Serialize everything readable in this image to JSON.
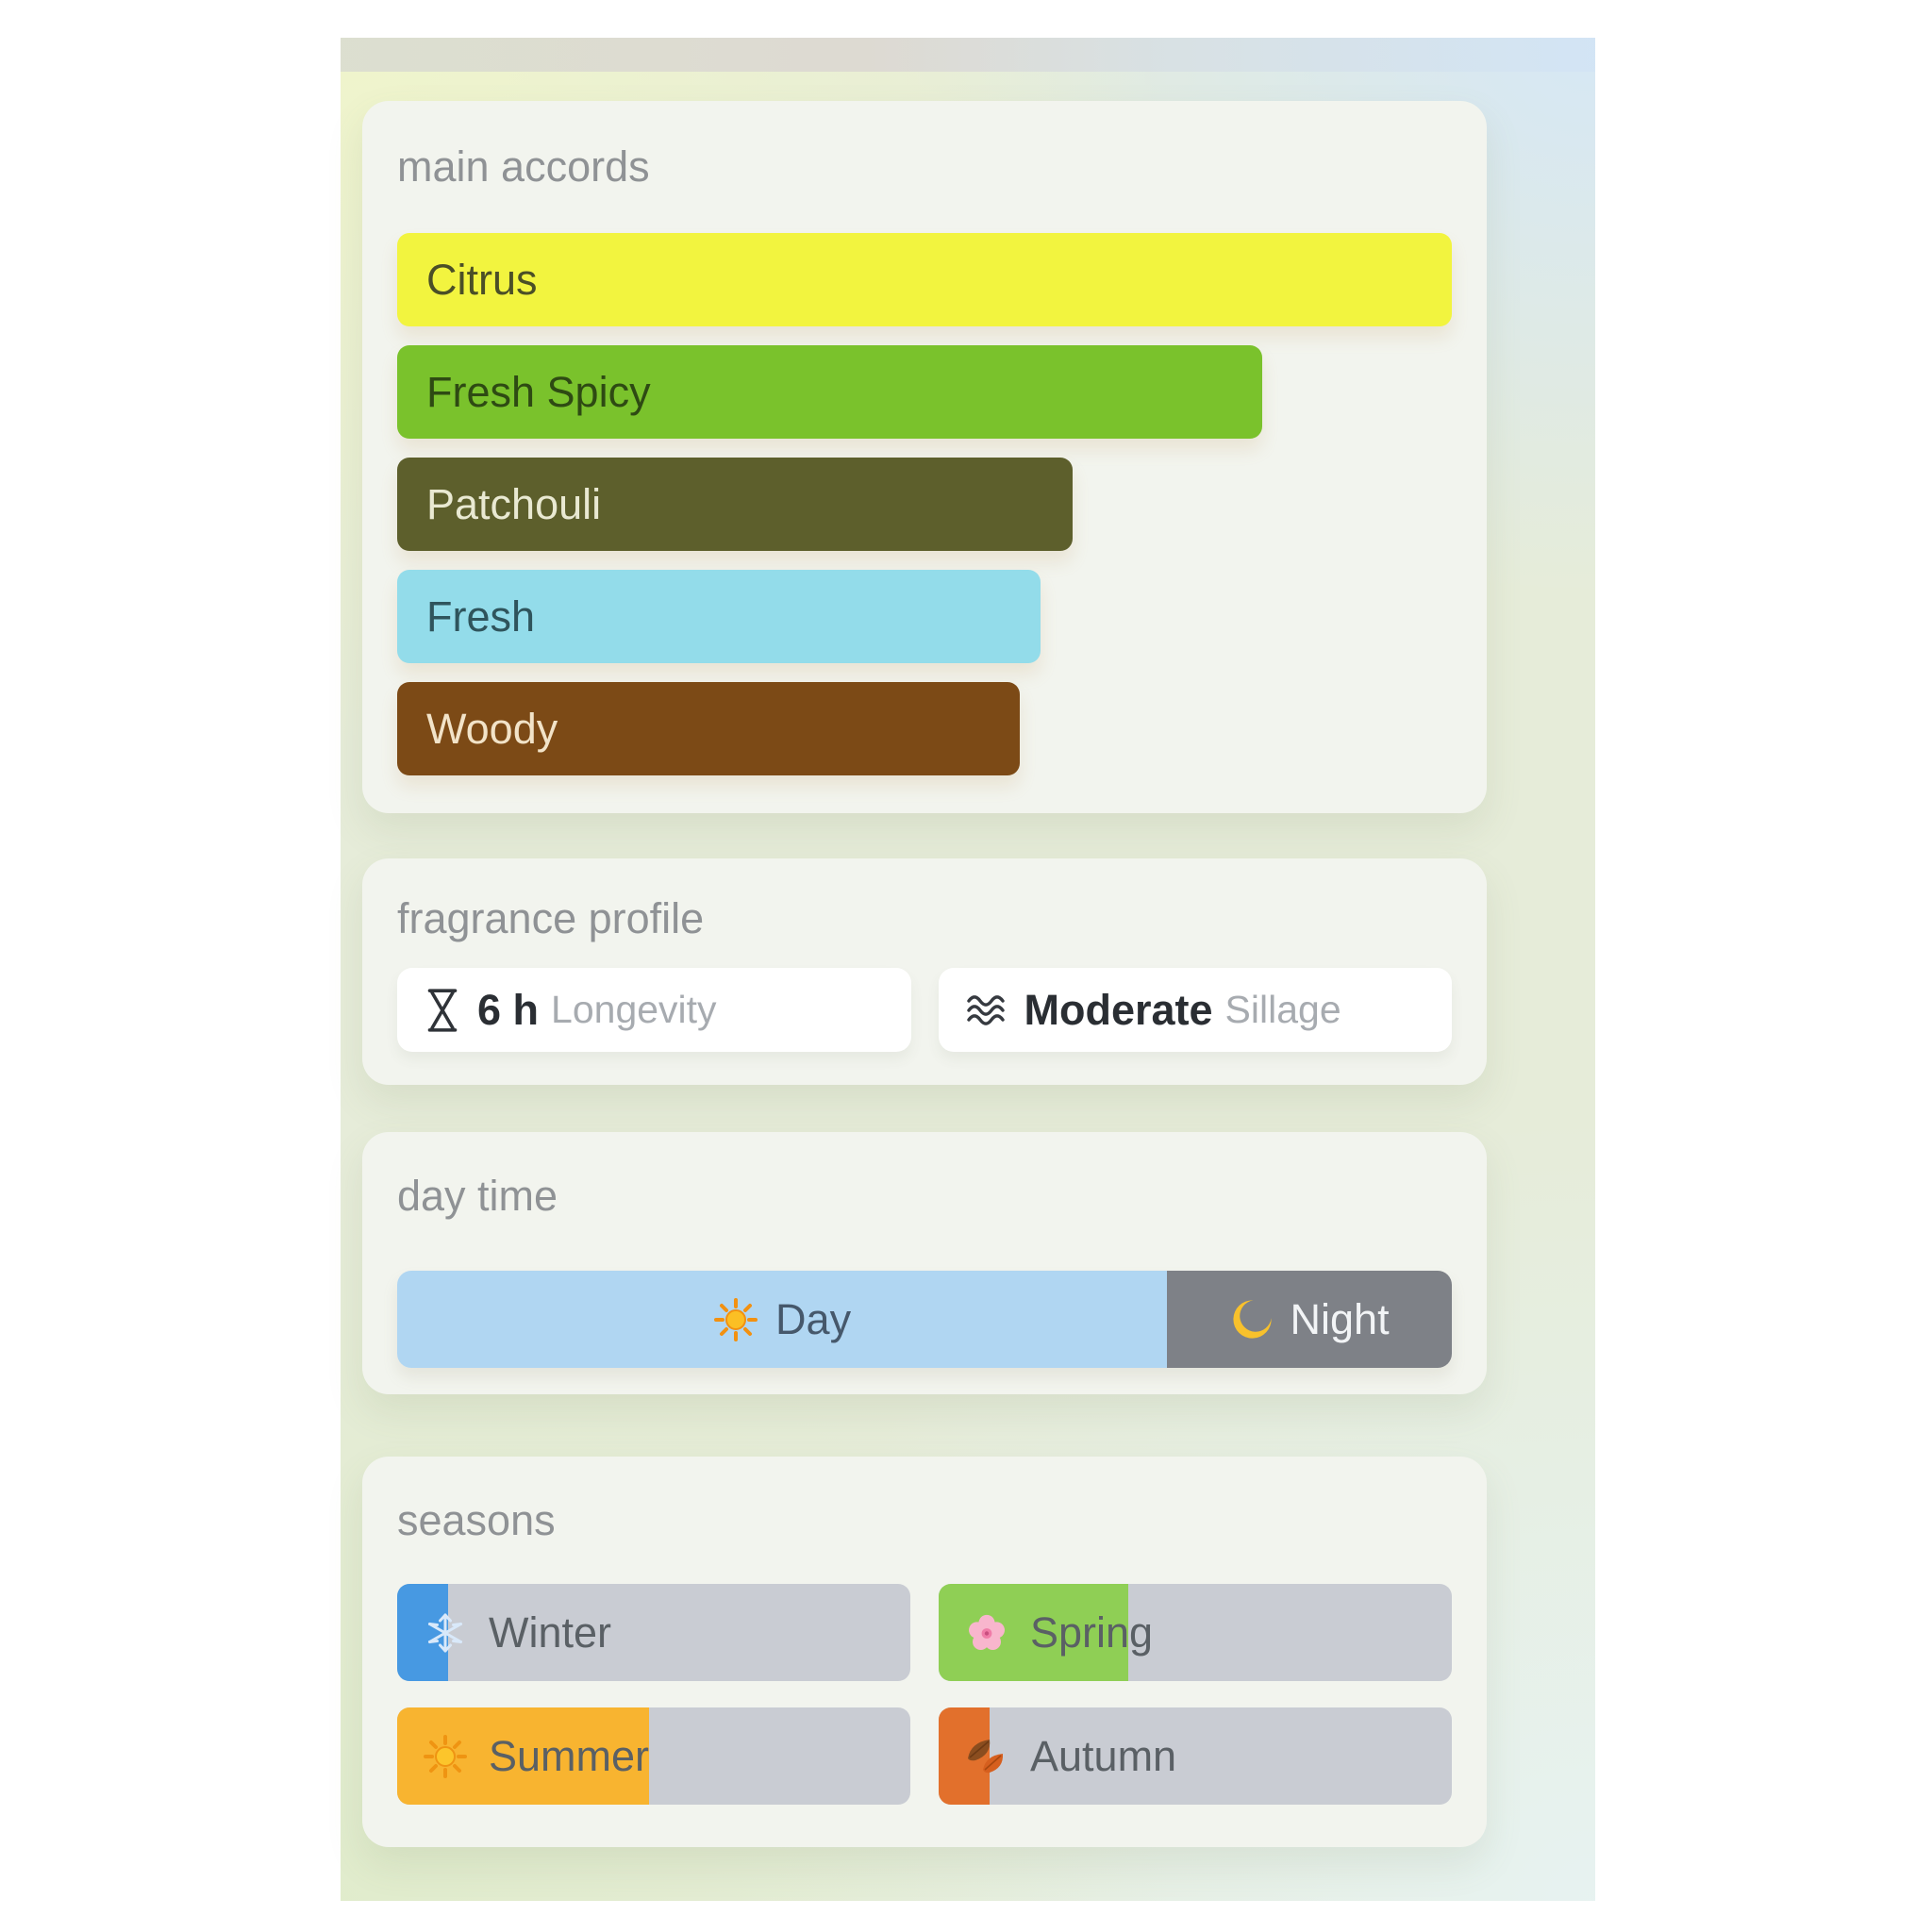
{
  "accords_card": {
    "title": "main accords",
    "bars": [
      {
        "label": "Citrus",
        "width_pct": 100,
        "color": "#f2f43f",
        "text_color": "#4b4f27"
      },
      {
        "label": "Fresh Spicy",
        "width_pct": 82,
        "color": "#7ac22c",
        "text_color": "#2e4a13"
      },
      {
        "label": "Patchouli",
        "width_pct": 64,
        "color": "#5d5f2c",
        "text_color": "#e9e9d2"
      },
      {
        "label": "Fresh",
        "width_pct": 61,
        "color": "#93dcea",
        "text_color": "#2f545c"
      },
      {
        "label": "Woody",
        "width_pct": 59,
        "color": "#7c4a16",
        "text_color": "#f2e3c8"
      }
    ]
  },
  "profile_card": {
    "title": "fragrance profile",
    "longevity": {
      "icon": "hourglass-icon",
      "value": "6 h",
      "label": "Longevity"
    },
    "sillage": {
      "icon": "waves-icon",
      "value": "Moderate",
      "label": "Sillage"
    }
  },
  "daytime_card": {
    "title": "day time",
    "day": {
      "label": "Day",
      "icon": "sun-icon",
      "width_pct": 73,
      "color": "#b0d6f2",
      "text_color": "#46586b"
    },
    "night": {
      "label": "Night",
      "icon": "moon-icon",
      "width_pct": 27,
      "color": "#7e8187",
      "text_color": "#f2f4f6"
    }
  },
  "seasons_card": {
    "title": "seasons",
    "track_color": "#c9ccd3",
    "items": [
      {
        "label": "Winter",
        "icon": "snowflake-icon",
        "fill": {
          "width_pct": 10,
          "color": "#4799e2"
        }
      },
      {
        "label": "Spring",
        "icon": "cherry-blossom-icon",
        "fill": {
          "width_pct": 37,
          "color": "#8fcf55"
        }
      },
      {
        "label": "Summer",
        "icon": "sun-icon",
        "fill": {
          "width_pct": 49,
          "color": "#f8b430"
        }
      },
      {
        "label": "Autumn",
        "icon": "autumn-leaves-icon",
        "fill": {
          "width_pct": 10,
          "color": "#e2702c"
        }
      }
    ]
  }
}
